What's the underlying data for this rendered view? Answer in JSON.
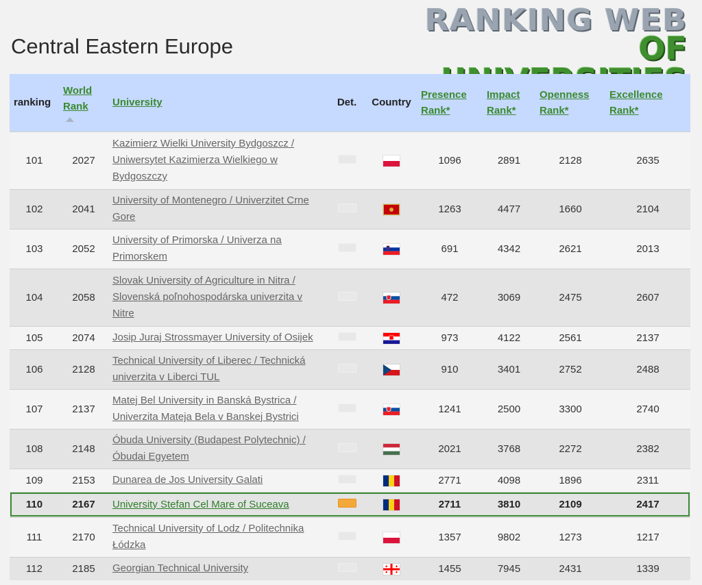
{
  "page_title": "Central Eastern Europe",
  "logo": {
    "line1": "RANKING WEB",
    "line2": "OF UNIVERSITIES"
  },
  "table": {
    "headers": {
      "ranking": "ranking",
      "world_rank": "World Rank",
      "university": "University",
      "det": "Det.",
      "country": "Country",
      "presence": "Presence Rank*",
      "impact": "Impact Rank*",
      "openness": "Openness Rank*",
      "excellence": "Excellence Rank*"
    },
    "rows": [
      {
        "ranking": "101",
        "world_rank": "2027",
        "university": "Kazimierz Wielki University Bydgoszcz / Uniwersytet Kazimierza Wielkiego w Bydgoszczy",
        "flag": "poland",
        "presence": "1096",
        "impact": "2891",
        "openness": "2128",
        "excellence": "2635"
      },
      {
        "ranking": "102",
        "world_rank": "2041",
        "university": "University of Montenegro / Univerzitet Crne Gore",
        "flag": "montenegro",
        "presence": "1263",
        "impact": "4477",
        "openness": "1660",
        "excellence": "2104"
      },
      {
        "ranking": "103",
        "world_rank": "2052",
        "university": "University of Primorska / Univerza na Primorskem",
        "flag": "slovenia",
        "presence": "691",
        "impact": "4342",
        "openness": "2621",
        "excellence": "2013"
      },
      {
        "ranking": "104",
        "world_rank": "2058",
        "university": "Slovak University of Agriculture in Nitra / Slovenská poľnohospodárska univerzita v Nitre",
        "flag": "slovakia",
        "presence": "472",
        "impact": "3069",
        "openness": "2475",
        "excellence": "2607"
      },
      {
        "ranking": "105",
        "world_rank": "2074",
        "university": "Josip Juraj Strossmayer University of Osijek",
        "flag": "croatia",
        "presence": "973",
        "impact": "4122",
        "openness": "2561",
        "excellence": "2137"
      },
      {
        "ranking": "106",
        "world_rank": "2128",
        "university": "Technical University of Liberec / Technická univerzita v Liberci TUL",
        "flag": "czechia",
        "presence": "910",
        "impact": "3401",
        "openness": "2752",
        "excellence": "2488"
      },
      {
        "ranking": "107",
        "world_rank": "2137",
        "university": "Matej Bel University in Banská Bystrica / Univerzita Mateja Bela v Banskej Bystrici",
        "flag": "slovakia",
        "presence": "1241",
        "impact": "2500",
        "openness": "3300",
        "excellence": "2740"
      },
      {
        "ranking": "108",
        "world_rank": "2148",
        "university": "Óbuda University (Budapest Polytechnic) / Óbudai Egyetem",
        "flag": "hungary",
        "presence": "2021",
        "impact": "3768",
        "openness": "2272",
        "excellence": "2382"
      },
      {
        "ranking": "109",
        "world_rank": "2153",
        "university": "Dunarea de Jos University Galati",
        "flag": "romania",
        "presence": "2771",
        "impact": "4098",
        "openness": "1896",
        "excellence": "2311"
      },
      {
        "ranking": "110",
        "world_rank": "2167",
        "university": "University Stefan Cel Mare of Suceava",
        "flag": "romania",
        "presence": "2711",
        "impact": "3810",
        "openness": "2109",
        "excellence": "2417",
        "highlight": true
      },
      {
        "ranking": "111",
        "world_rank": "2170",
        "university": "Technical University of Lodz / Politechnika Łódzka",
        "flag": "poland",
        "presence": "1357",
        "impact": "9802",
        "openness": "1273",
        "excellence": "1217"
      },
      {
        "ranking": "112",
        "world_rank": "2185",
        "university": "Georgian Technical University",
        "flag": "georgia",
        "presence": "1455",
        "impact": "7945",
        "openness": "2431",
        "excellence": "1339"
      }
    ]
  },
  "colors": {
    "header_bg": "#c6d9ff",
    "link_green": "#3a8a2e",
    "highlight_border": "#3b8a36",
    "det_active": "#f3a83a"
  }
}
